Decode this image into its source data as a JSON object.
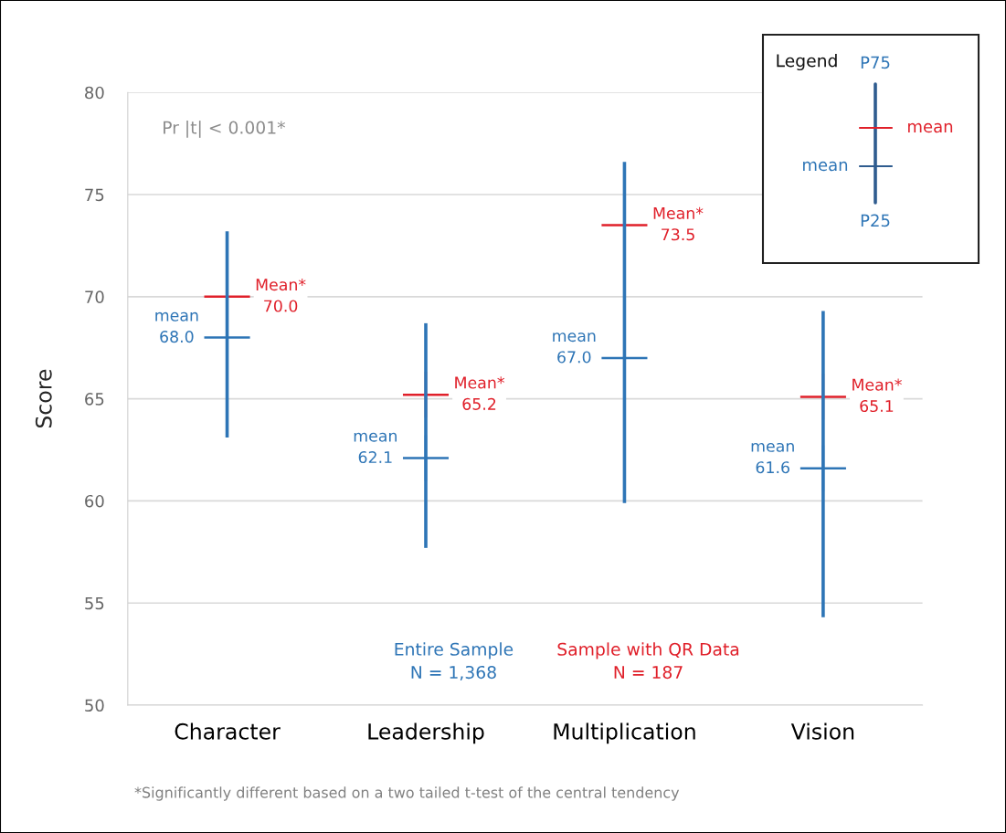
{
  "chart_data": {
    "type": "scatter",
    "ylabel": "Score",
    "categories": [
      "Character",
      "Leadership",
      "Multiplication",
      "Vision"
    ],
    "series": [
      {
        "name": "Entire Sample\nN = 1,368",
        "color": "#2e75b6",
        "values": [
          68.0,
          62.1,
          67.0,
          61.6
        ],
        "errors": [
          [
            63.1,
            73.2
          ],
          [
            57.7,
            68.7
          ],
          [
            59.9,
            76.6
          ],
          [
            54.3,
            69.3
          ]
        ],
        "value_labels": [
          "mean\n68.0",
          "mean\n62.1",
          "mean\n67.0",
          "mean\n61.6"
        ]
      },
      {
        "name": "Sample with QR Data\nN = 187",
        "color": "#e0202a",
        "values": [
          70.0,
          65.2,
          73.5,
          65.1
        ],
        "value_labels": [
          "Mean*\n70.0",
          "Mean*\n65.2",
          "Mean*\n73.5",
          "Mean*\n65.1"
        ]
      }
    ],
    "marker": "cross",
    "ylim": [
      50,
      80
    ],
    "yticks": [
      50,
      55,
      60,
      65,
      70,
      75,
      80
    ],
    "grid": "y",
    "annotations": [
      "Pr |t| < 0.001*",
      "*Significantly different based on a two tailed t-test of the central tendency",
      "Legend",
      "P75",
      "mean",
      "mean",
      "P25"
    ]
  }
}
